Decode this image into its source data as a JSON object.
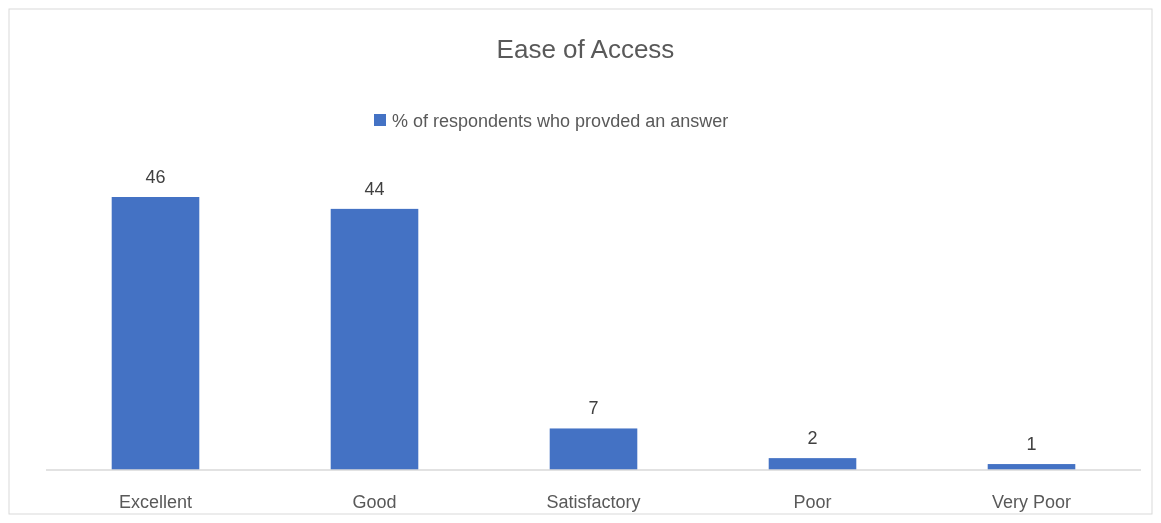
{
  "chart_data": {
    "type": "bar",
    "title": "Ease of Access",
    "categories": [
      "Excellent",
      "Good",
      "Satisfactory",
      "Poor",
      "Very Poor"
    ],
    "series": [
      {
        "name": "% of respondents who provded an answer",
        "color": "#4472c4",
        "values": [
          46,
          44,
          7,
          2,
          1
        ]
      }
    ],
    "data_labels": true,
    "legend": "top"
  }
}
